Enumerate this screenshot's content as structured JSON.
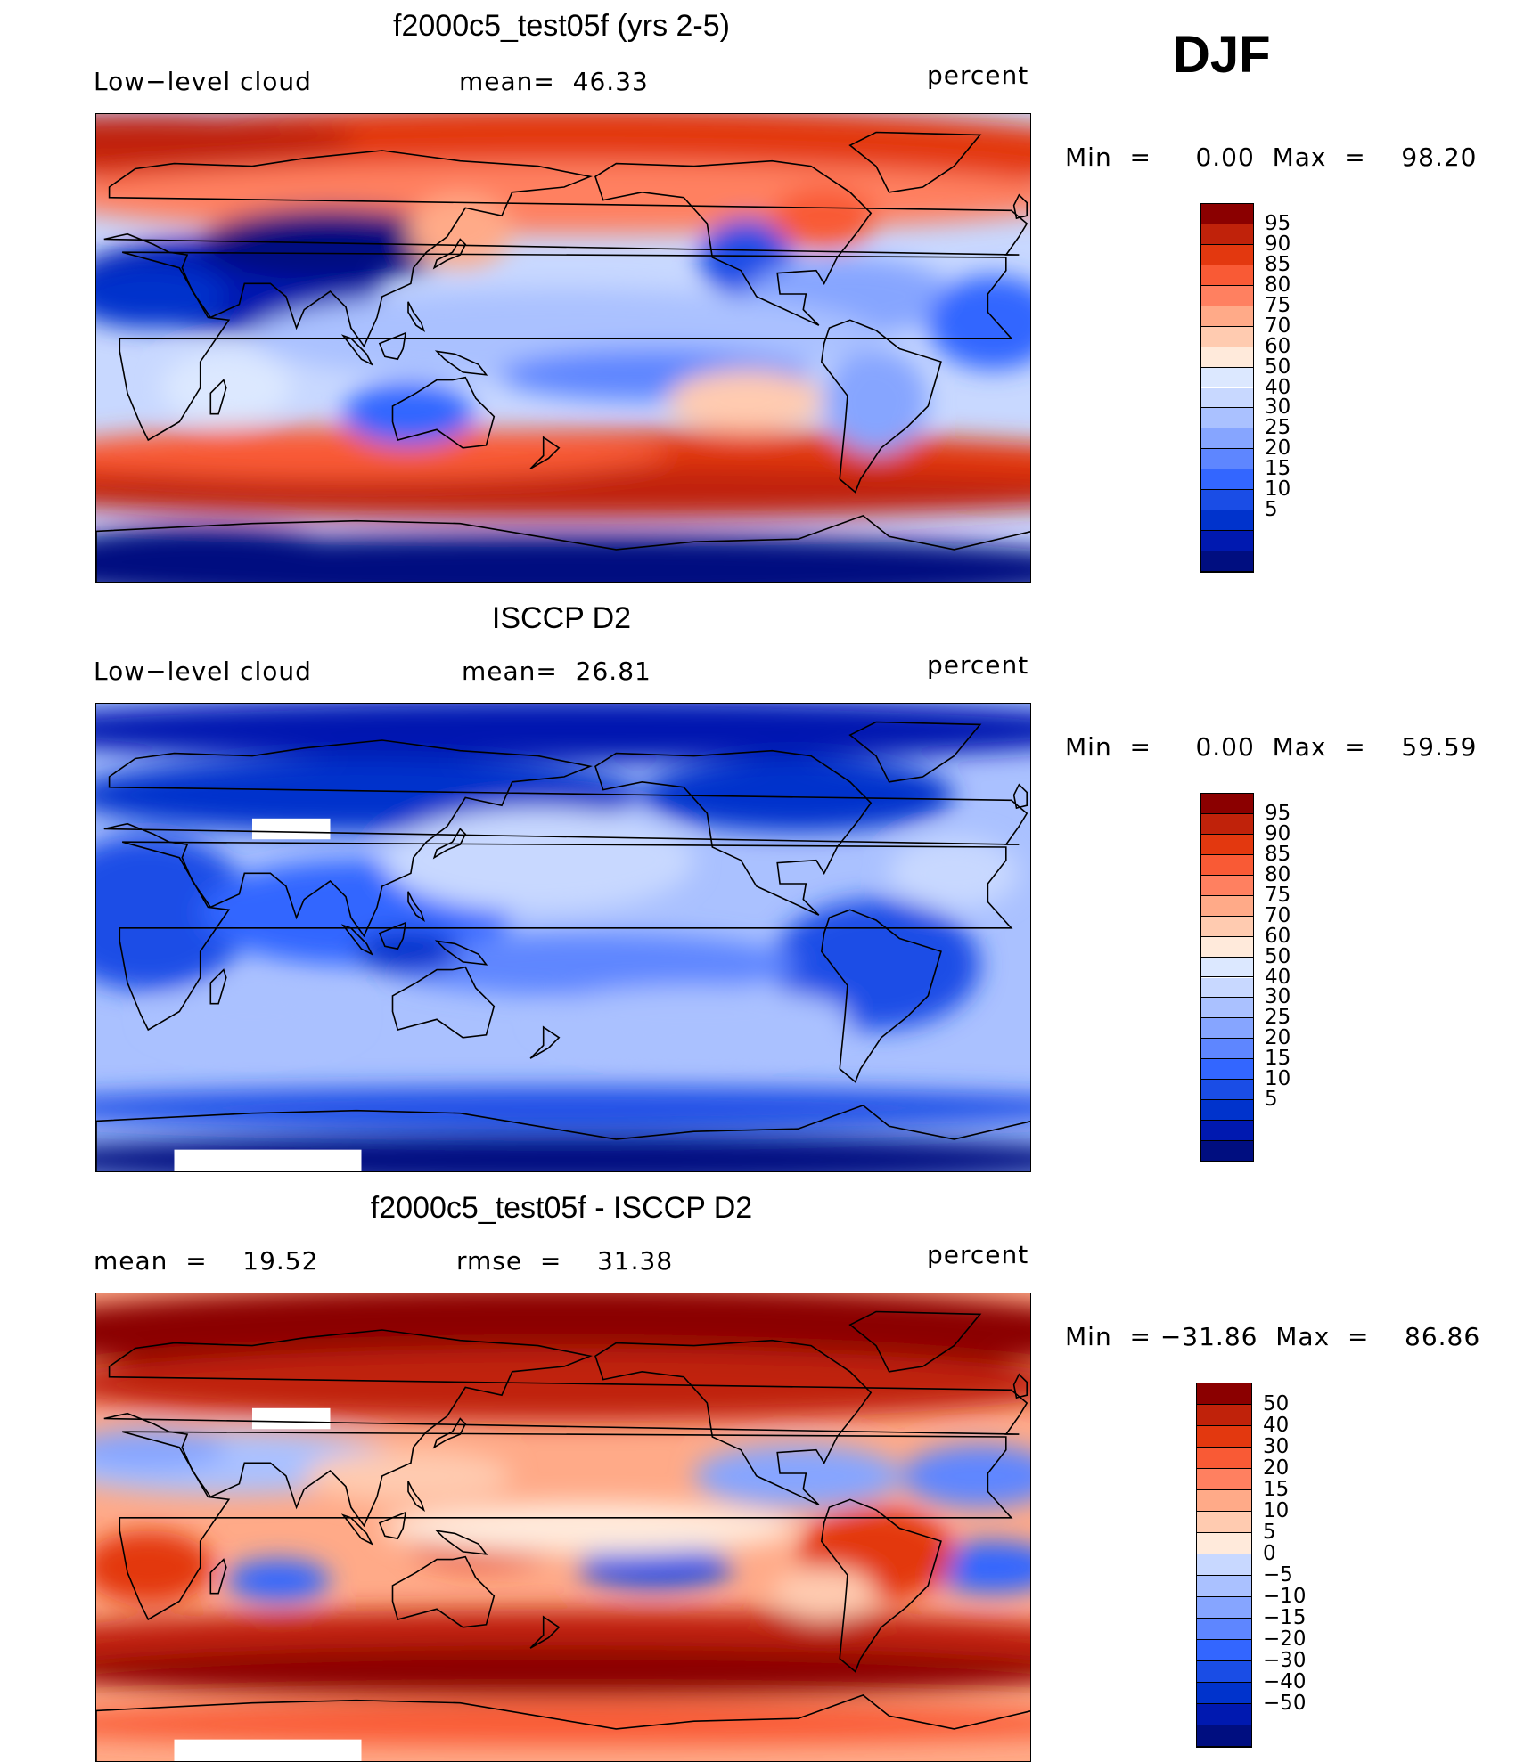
{
  "season": "DJF",
  "palette_abs": [
    "#000e80",
    "#0019b0",
    "#0033cc",
    "#1a4de6",
    "#3366ff",
    "#5e86ff",
    "#86a5ff",
    "#aac1ff",
    "#c8d8ff",
    "#dce8ff",
    "#ffeadb",
    "#ffcbb0",
    "#ffaa88",
    "#ff8060",
    "#f95a35",
    "#e3380f",
    "#c0220a",
    "#8b0000"
  ],
  "palette_diff": [
    "#000e80",
    "#0019b0",
    "#0033cc",
    "#1a4de6",
    "#3366ff",
    "#5e86ff",
    "#86a5ff",
    "#aac1ff",
    "#c8d8ff",
    "#ffeadb",
    "#ffcbb0",
    "#ffaa88",
    "#ff8060",
    "#f95a35",
    "#e3380f",
    "#c0220a",
    "#8b0000"
  ],
  "panels": [
    {
      "title": "f2000c5_test05f (yrs 2-5)",
      "left_label": "Low−level cloud",
      "center_label": "mean=  46.33",
      "right_label": "percent",
      "minmax": "Min  =     0.00  Max  =    98.20",
      "colorbar_type": "abs",
      "colorbar_labels": [
        "95",
        "90",
        "85",
        "80",
        "75",
        "70",
        "60",
        "50",
        "40",
        "30",
        "25",
        "20",
        "15",
        "10",
        "5"
      ]
    },
    {
      "title": "ISCCP D2",
      "left_label": "Low−level cloud",
      "center_label": "mean=  26.81",
      "right_label": "percent",
      "minmax": "Min  =     0.00  Max  =    59.59",
      "colorbar_type": "abs",
      "colorbar_labels": [
        "95",
        "90",
        "85",
        "80",
        "75",
        "70",
        "60",
        "50",
        "40",
        "30",
        "25",
        "20",
        "15",
        "10",
        "5"
      ]
    },
    {
      "title": "f2000c5_test05f - ISCCP D2",
      "left_label": "mean  =    19.52",
      "center_label": "rmse  =    31.38",
      "right_label": "percent",
      "minmax": "Min  = −31.86  Max  =    86.86",
      "colorbar_type": "diff",
      "colorbar_labels": [
        "50",
        "40",
        "30",
        "20",
        "15",
        "10",
        "5",
        "0",
        "−5",
        "−10",
        "−15",
        "−20",
        "−30",
        "−40",
        "−50"
      ]
    }
  ]
}
